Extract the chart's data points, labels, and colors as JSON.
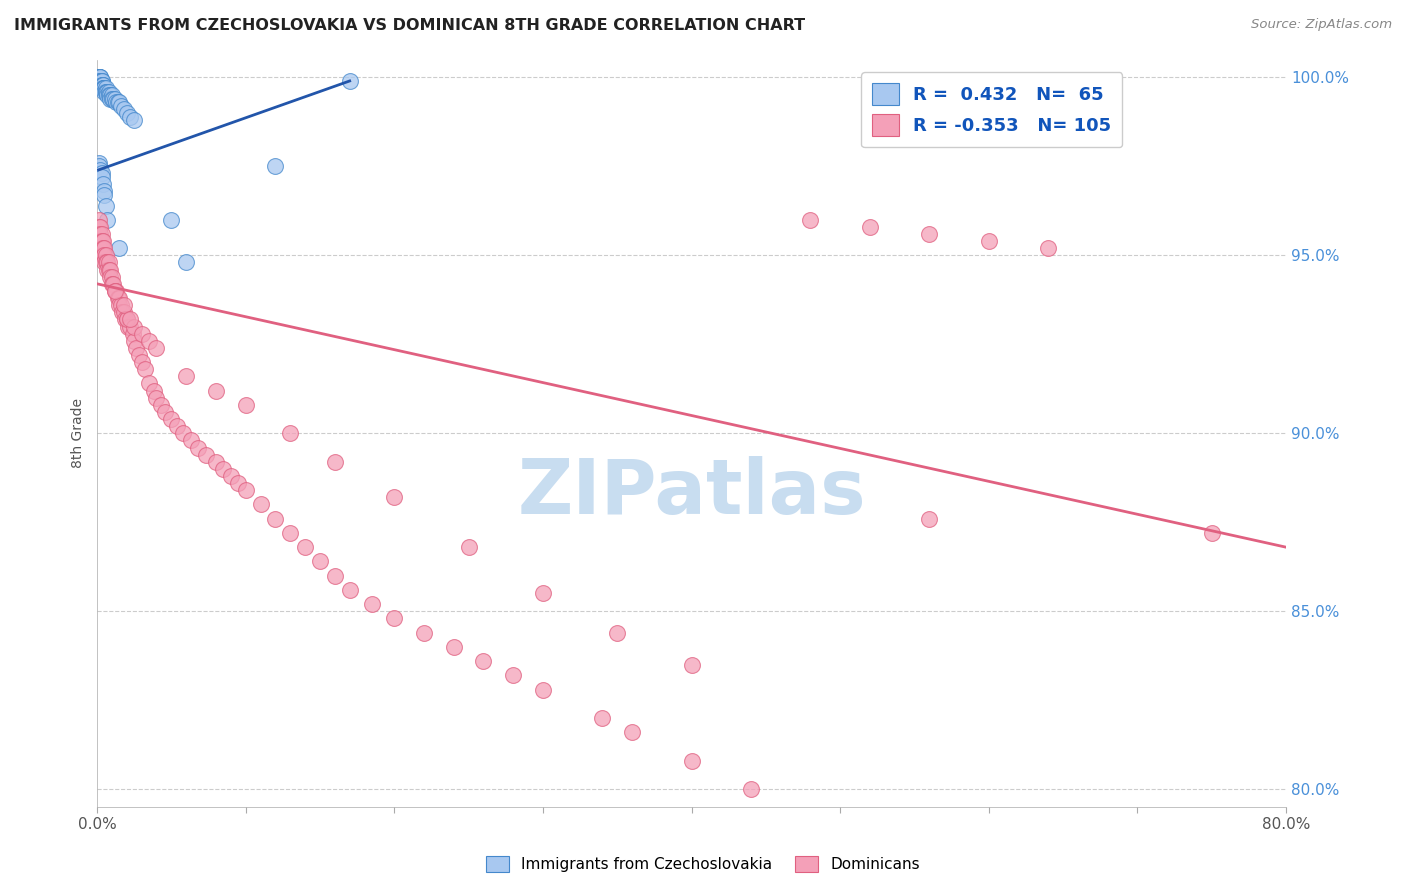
{
  "title": "IMMIGRANTS FROM CZECHOSLOVAKIA VS DOMINICAN 8TH GRADE CORRELATION CHART",
  "source": "Source: ZipAtlas.com",
  "ylabel": "8th Grade",
  "xlim": [
    0.0,
    0.8
  ],
  "ylim": [
    0.795,
    1.005
  ],
  "x_ticks": [
    0.0,
    0.1,
    0.2,
    0.3,
    0.4,
    0.5,
    0.6,
    0.7,
    0.8
  ],
  "y_ticks": [
    0.8,
    0.85,
    0.9,
    0.95,
    1.0
  ],
  "y_tick_labels": [
    "80.0%",
    "85.0%",
    "90.0%",
    "95.0%",
    "100.0%"
  ],
  "blue_color": "#a8c8f0",
  "pink_color": "#f4a0b8",
  "blue_edge_color": "#4488cc",
  "pink_edge_color": "#e06080",
  "blue_line_color": "#2255aa",
  "pink_line_color": "#e06080",
  "watermark": "ZIPatlas",
  "watermark_color": "#c8ddf0",
  "blue_line_x0": 0.001,
  "blue_line_x1": 0.17,
  "blue_line_y0": 0.974,
  "blue_line_y1": 0.999,
  "pink_line_x0": 0.0,
  "pink_line_x1": 0.8,
  "pink_line_y0": 0.942,
  "pink_line_y1": 0.868,
  "blue_x": [
    0.001,
    0.001,
    0.001,
    0.001,
    0.001,
    0.001,
    0.001,
    0.001,
    0.002,
    0.002,
    0.002,
    0.002,
    0.002,
    0.002,
    0.002,
    0.002,
    0.003,
    0.003,
    0.003,
    0.003,
    0.003,
    0.003,
    0.004,
    0.004,
    0.004,
    0.004,
    0.005,
    0.005,
    0.005,
    0.006,
    0.006,
    0.006,
    0.007,
    0.007,
    0.008,
    0.008,
    0.009,
    0.009,
    0.01,
    0.01,
    0.011,
    0.012,
    0.013,
    0.014,
    0.015,
    0.016,
    0.018,
    0.02,
    0.022,
    0.025,
    0.001,
    0.001,
    0.002,
    0.003,
    0.003,
    0.004,
    0.005,
    0.005,
    0.006,
    0.007,
    0.015,
    0.06,
    0.17,
    0.05,
    0.12
  ],
  "blue_y": [
    1.0,
    1.0,
    1.0,
    1.0,
    1.0,
    0.999,
    0.999,
    0.999,
    1.0,
    1.0,
    0.999,
    0.999,
    0.999,
    0.998,
    0.998,
    0.998,
    0.999,
    0.999,
    0.998,
    0.998,
    0.997,
    0.997,
    0.998,
    0.998,
    0.997,
    0.997,
    0.997,
    0.997,
    0.996,
    0.997,
    0.996,
    0.996,
    0.996,
    0.995,
    0.996,
    0.995,
    0.995,
    0.994,
    0.995,
    0.994,
    0.994,
    0.994,
    0.993,
    0.993,
    0.993,
    0.992,
    0.991,
    0.99,
    0.989,
    0.988,
    0.976,
    0.975,
    0.974,
    0.973,
    0.972,
    0.97,
    0.968,
    0.967,
    0.964,
    0.96,
    0.952,
    0.948,
    0.999,
    0.96,
    0.975
  ],
  "pink_x": [
    0.001,
    0.001,
    0.001,
    0.002,
    0.002,
    0.002,
    0.002,
    0.003,
    0.003,
    0.003,
    0.003,
    0.004,
    0.004,
    0.004,
    0.005,
    0.005,
    0.005,
    0.006,
    0.006,
    0.007,
    0.007,
    0.008,
    0.008,
    0.009,
    0.009,
    0.01,
    0.01,
    0.011,
    0.012,
    0.013,
    0.014,
    0.015,
    0.015,
    0.016,
    0.017,
    0.018,
    0.019,
    0.02,
    0.021,
    0.022,
    0.024,
    0.025,
    0.026,
    0.028,
    0.03,
    0.032,
    0.035,
    0.038,
    0.04,
    0.043,
    0.046,
    0.05,
    0.054,
    0.058,
    0.063,
    0.068,
    0.073,
    0.08,
    0.085,
    0.09,
    0.095,
    0.1,
    0.11,
    0.12,
    0.13,
    0.14,
    0.15,
    0.16,
    0.17,
    0.185,
    0.2,
    0.22,
    0.24,
    0.26,
    0.28,
    0.3,
    0.34,
    0.36,
    0.4,
    0.44,
    0.48,
    0.52,
    0.56,
    0.6,
    0.64,
    0.02,
    0.025,
    0.03,
    0.035,
    0.04,
    0.012,
    0.018,
    0.022,
    0.06,
    0.08,
    0.1,
    0.13,
    0.16,
    0.2,
    0.25,
    0.3,
    0.35,
    0.4,
    0.75,
    0.56
  ],
  "pink_y": [
    0.96,
    0.958,
    0.956,
    0.958,
    0.956,
    0.954,
    0.952,
    0.956,
    0.954,
    0.952,
    0.95,
    0.954,
    0.952,
    0.95,
    0.952,
    0.95,
    0.948,
    0.95,
    0.948,
    0.948,
    0.946,
    0.948,
    0.946,
    0.946,
    0.944,
    0.944,
    0.942,
    0.942,
    0.94,
    0.94,
    0.938,
    0.938,
    0.936,
    0.936,
    0.934,
    0.934,
    0.932,
    0.932,
    0.93,
    0.93,
    0.928,
    0.926,
    0.924,
    0.922,
    0.92,
    0.918,
    0.914,
    0.912,
    0.91,
    0.908,
    0.906,
    0.904,
    0.902,
    0.9,
    0.898,
    0.896,
    0.894,
    0.892,
    0.89,
    0.888,
    0.886,
    0.884,
    0.88,
    0.876,
    0.872,
    0.868,
    0.864,
    0.86,
    0.856,
    0.852,
    0.848,
    0.844,
    0.84,
    0.836,
    0.832,
    0.828,
    0.82,
    0.816,
    0.808,
    0.8,
    0.96,
    0.958,
    0.956,
    0.954,
    0.952,
    0.932,
    0.93,
    0.928,
    0.926,
    0.924,
    0.94,
    0.936,
    0.932,
    0.916,
    0.912,
    0.908,
    0.9,
    0.892,
    0.882,
    0.868,
    0.855,
    0.844,
    0.835,
    0.872,
    0.876
  ]
}
